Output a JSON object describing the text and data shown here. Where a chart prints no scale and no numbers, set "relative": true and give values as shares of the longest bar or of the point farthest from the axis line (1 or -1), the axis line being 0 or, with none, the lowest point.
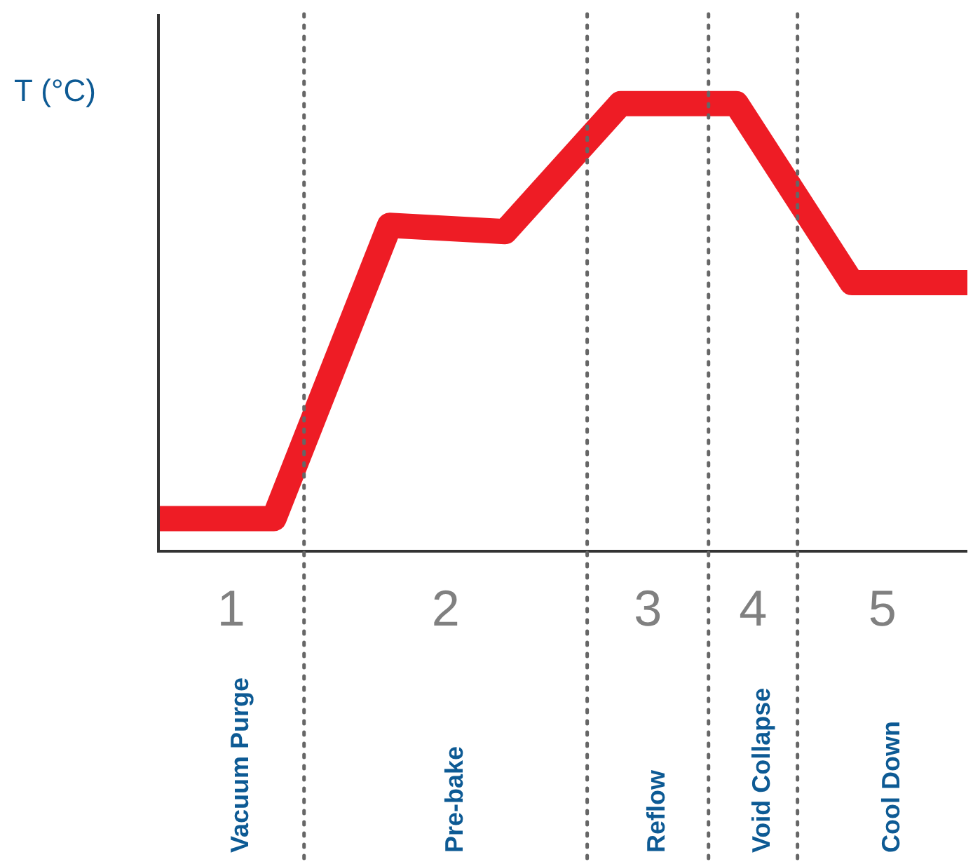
{
  "chart_data": {
    "type": "line",
    "relative": true,
    "ylabel": "T (°C)",
    "categories": [
      null,
      null,
      null,
      null,
      null,
      null,
      null,
      null
    ],
    "series": [
      {
        "color": "#ee1c25",
        "values": [
          0.073,
          0.073,
          0.728,
          0.714,
          1,
          1,
          0.6,
          0.6
        ]
      }
    ],
    "annotations": [
      "1",
      "Vacuum Purge",
      "2",
      "Pre-bake",
      "3",
      "Reflow",
      "4",
      "Void Collapse",
      "5",
      "Cool Down"
    ],
    "legend": false,
    "marker": "none",
    "line_style": "solid"
  }
}
